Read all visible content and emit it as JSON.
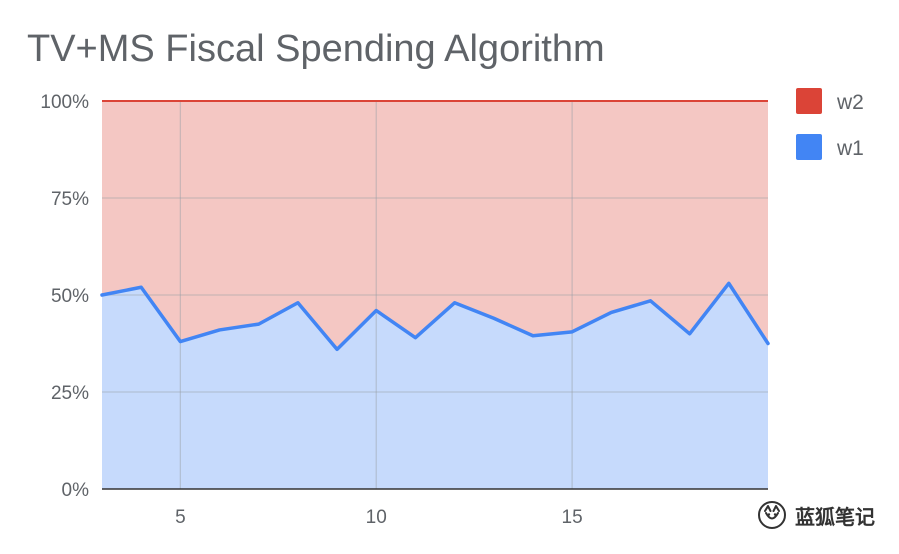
{
  "chart_data": {
    "type": "area",
    "stacked": true,
    "normalized": true,
    "title": "TV+MS Fiscal Spending Algorithm",
    "x": [
      3,
      4,
      5,
      6,
      7,
      8,
      9,
      10,
      11,
      12,
      13,
      14,
      15,
      16,
      17,
      18,
      19,
      20
    ],
    "xlim": [
      3,
      20
    ],
    "x_tick_values": [
      5,
      10,
      15
    ],
    "x_tick_labels": [
      "5",
      "10",
      "15"
    ],
    "ylim": [
      0,
      100
    ],
    "y_tick_values": [
      0,
      25,
      50,
      75,
      100
    ],
    "y_tick_labels": [
      "0%",
      "25%",
      "50%",
      "75%",
      "100%"
    ],
    "grid": true,
    "legend_position": "right",
    "series": [
      {
        "name": "w1",
        "color": "#4285f4",
        "fill_color": "#c6dafc",
        "values": [
          50,
          52,
          38,
          41,
          42.5,
          48,
          36,
          46,
          39,
          48,
          44,
          39.5,
          40.5,
          45.5,
          48.5,
          40,
          53,
          37.5
        ]
      },
      {
        "name": "w2",
        "color": "#db4437",
        "fill_color": "#f4c7c3",
        "values": [
          50,
          48,
          62,
          59,
          57.5,
          52,
          64,
          54,
          61,
          52,
          56,
          60.5,
          59.5,
          54.5,
          51.5,
          60,
          47,
          62.5
        ]
      }
    ],
    "legend_order": [
      "w2",
      "w1"
    ]
  },
  "watermark": {
    "text": "蓝狐笔记",
    "icon": "fox-logo-icon"
  }
}
